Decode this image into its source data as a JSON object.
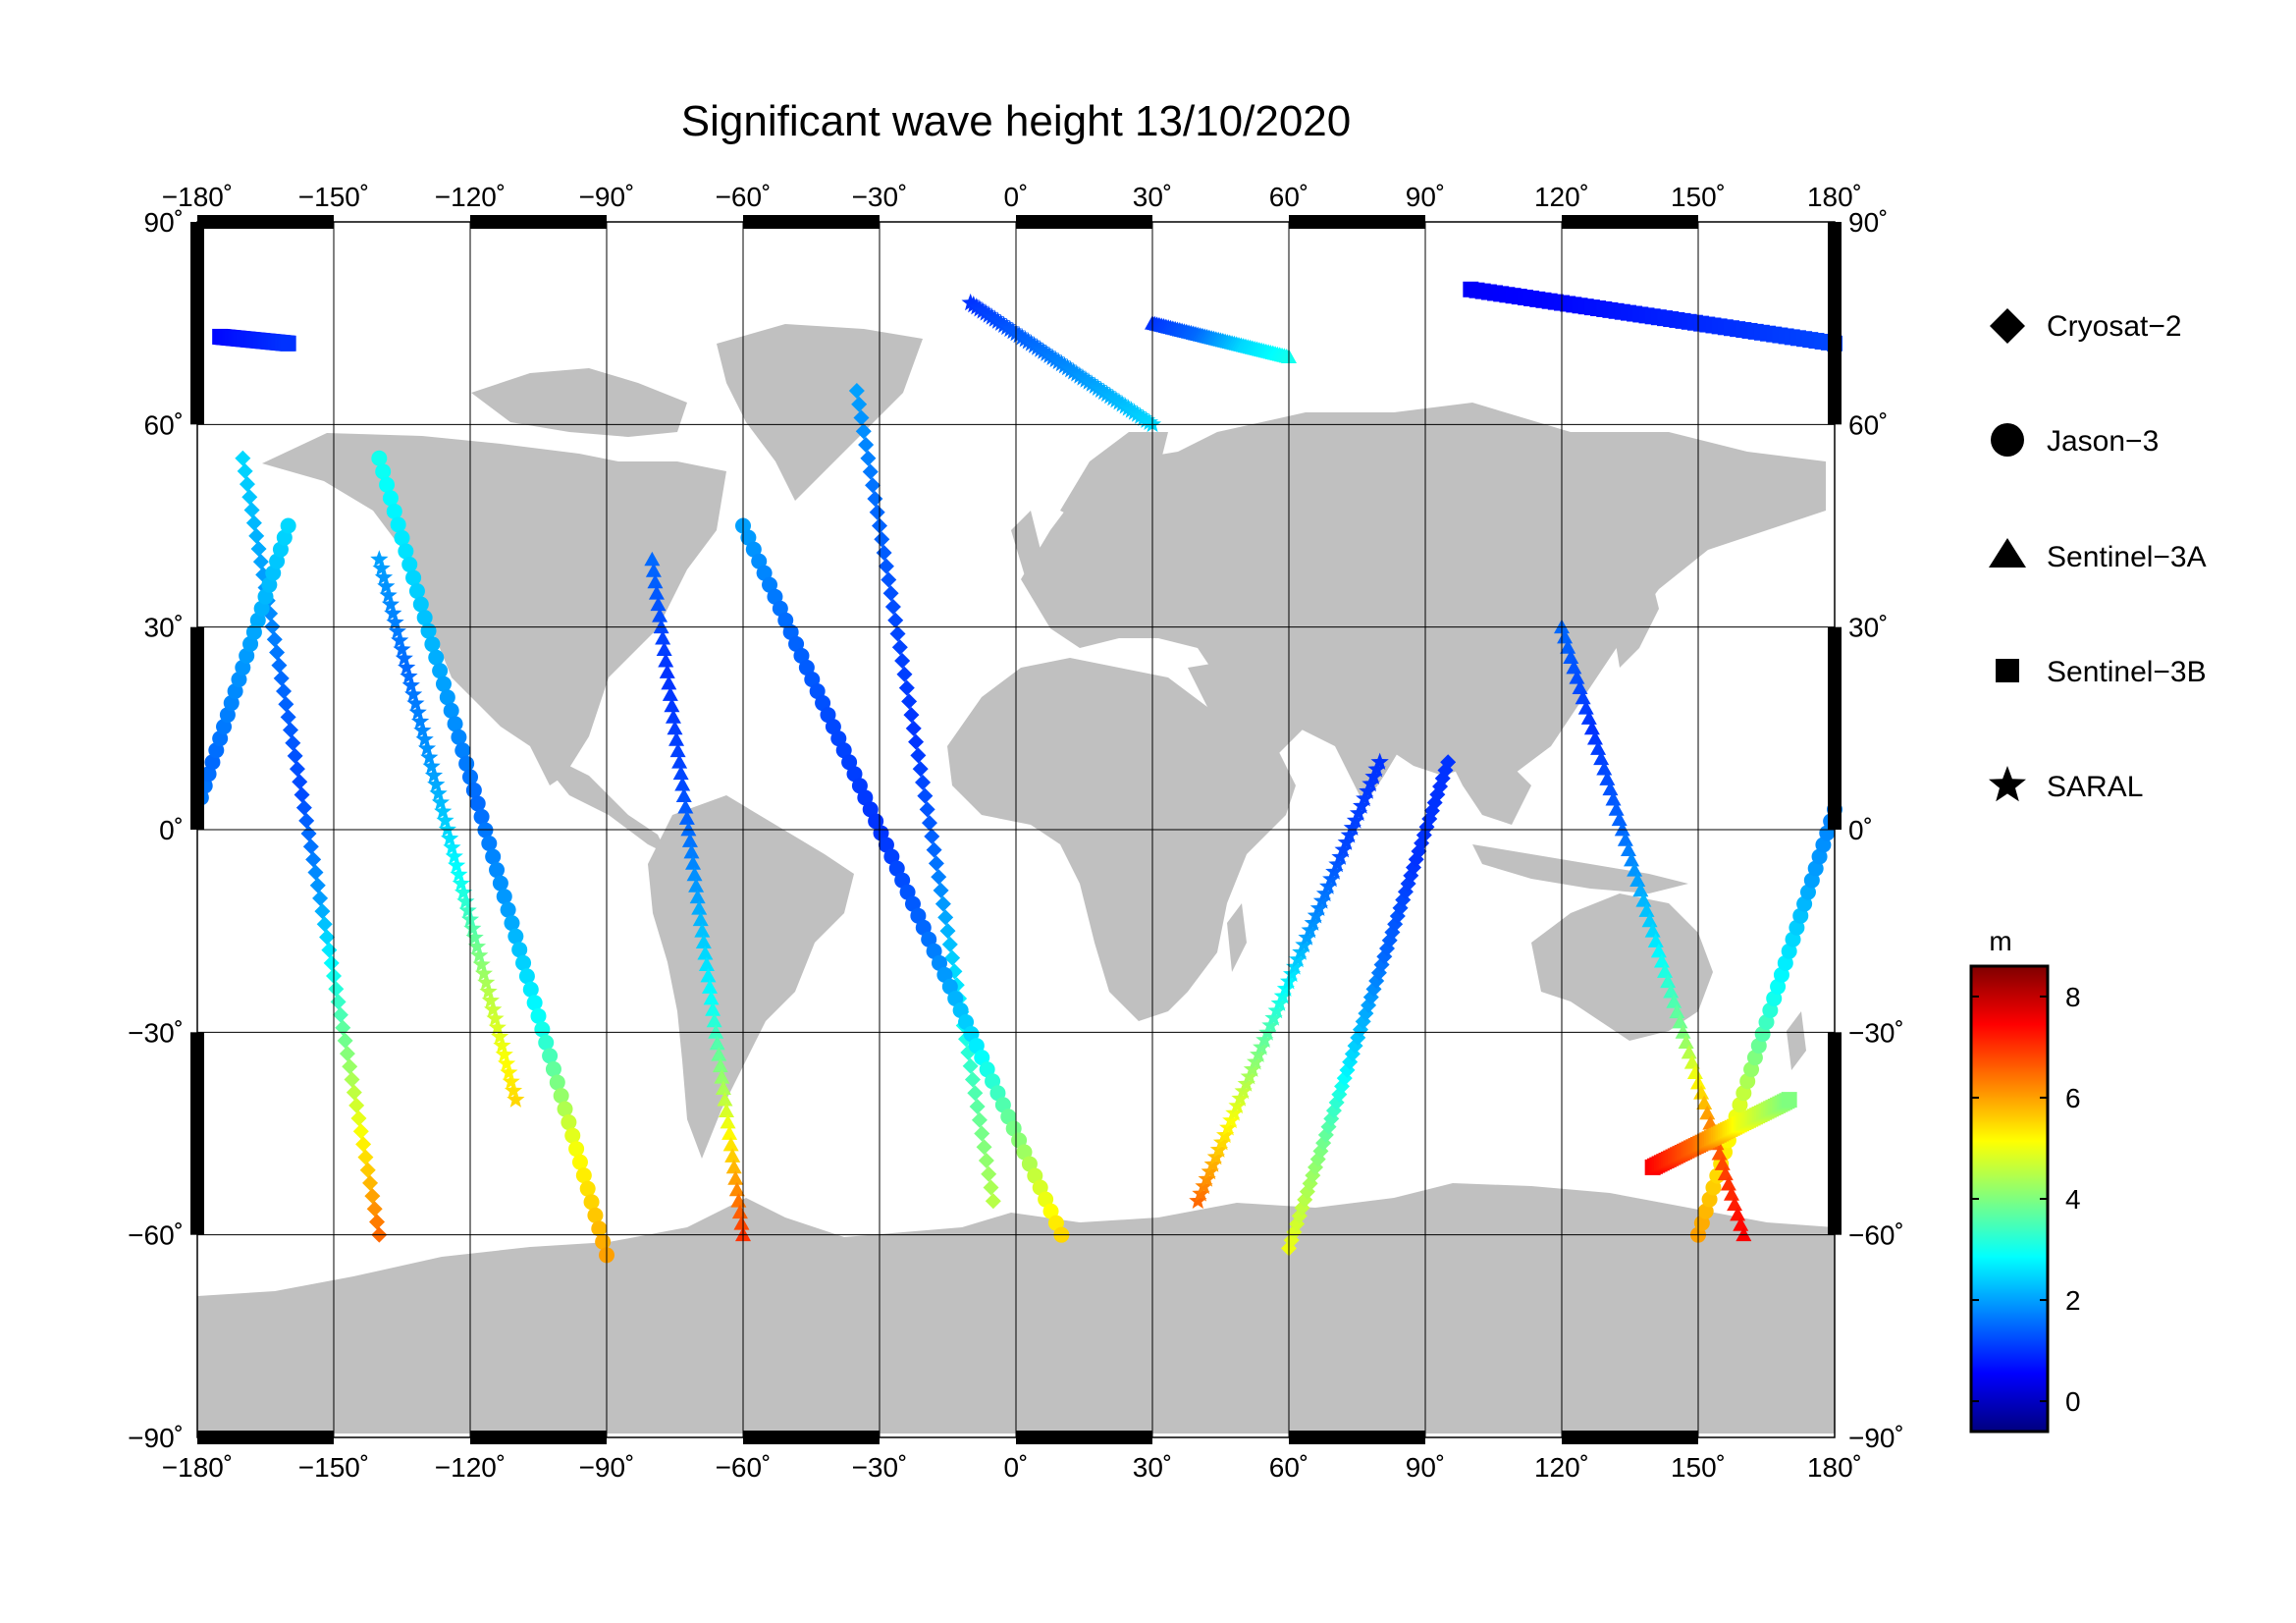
{
  "title": "Significant wave height 13/10/2020",
  "lon_ticks": [
    "−180˚",
    "−150˚",
    "−120˚",
    "−90˚",
    "−60˚",
    "−30˚",
    "0˚",
    "30˚",
    "60˚",
    "90˚",
    "120˚",
    "150˚",
    "180˚"
  ],
  "lat_ticks": [
    "90˚",
    "60˚",
    "30˚",
    "0˚",
    "−30˚",
    "−60˚",
    "−90˚"
  ],
  "legend": {
    "items": [
      {
        "label": "Cryosat−2",
        "marker": "diamond-icon"
      },
      {
        "label": "Jason−3",
        "marker": "circle-icon"
      },
      {
        "label": "Sentinel−3A",
        "marker": "triangle-icon"
      },
      {
        "label": "Sentinel−3B",
        "marker": "square-icon"
      },
      {
        "label": "SARAL",
        "marker": "star-icon"
      }
    ]
  },
  "colorbar": {
    "unit": "m",
    "ticks": [
      "8",
      "6",
      "4",
      "2",
      "0"
    ],
    "range": [
      -0.6,
      8.6
    ],
    "colormap": [
      "#00007f",
      "#0000ff",
      "#007fff",
      "#00ffff",
      "#7fff7f",
      "#ffff00",
      "#ff7f00",
      "#ff0000",
      "#7f0000"
    ]
  },
  "colors": {
    "land": "#c0c0c0",
    "ocean": "#ffffff",
    "grid": "#000000"
  },
  "chart_data": {
    "type": "scatter",
    "projection": "equirectangular",
    "xlim": [
      -180,
      180
    ],
    "ylim": [
      -90,
      90
    ],
    "grid": true,
    "legend_position": "right",
    "value_unit": "m",
    "series": [
      {
        "name": "Cryosat−2",
        "marker": "diamond",
        "tracks": [
          {
            "lon0": -35,
            "lat0": 65,
            "lon1": -5,
            "lat1": -55,
            "hs": [
              2.0,
              1.5,
              1.2,
              1.0,
              1.5,
              2.5,
              3.5,
              4.5
            ]
          },
          {
            "lon0": 60,
            "lat0": -62,
            "lon1": 95,
            "lat1": 10,
            "hs": [
              5.0,
              4.0,
              2.5,
              1.5,
              1.0,
              1.0
            ]
          },
          {
            "lon0": -170,
            "lat0": 55,
            "lon1": -140,
            "lat1": -60,
            "hs": [
              2.5,
              2.0,
              1.5,
              1.2,
              2.0,
              3.5,
              5.0,
              6.5
            ]
          }
        ]
      },
      {
        "name": "Jason−3",
        "marker": "circle",
        "tracks": [
          {
            "lon0": -60,
            "lat0": 45,
            "lon1": 10,
            "lat1": -60,
            "hs": [
              2.0,
              1.5,
              1.2,
              1.0,
              1.5,
              2.5,
              4.0,
              5.5
            ]
          },
          {
            "lon0": -140,
            "lat0": 55,
            "lon1": -90,
            "lat1": -63,
            "hs": [
              3.0,
              2.5,
              2.0,
              1.5,
              2.0,
              3.0,
              5.0,
              6.0
            ]
          },
          {
            "lon0": 150,
            "lat0": -60,
            "lon1": 200,
            "lat1": 45,
            "hs": [
              6.0,
              5.0,
              3.0,
              2.0,
              1.5,
              2.0,
              2.5
            ]
          }
        ]
      },
      {
        "name": "Sentinel−3A",
        "marker": "triangle",
        "tracks": [
          {
            "lon0": -80,
            "lat0": 40,
            "lon1": -60,
            "lat1": -60,
            "hs": [
              1.5,
              1.0,
              1.2,
              2.0,
              3.0,
              5.0,
              7.0
            ]
          },
          {
            "lon0": 120,
            "lat0": 30,
            "lon1": 160,
            "lat1": -60,
            "hs": [
              1.5,
              1.0,
              1.5,
              2.5,
              4.0,
              6.5,
              7.5
            ]
          },
          {
            "lon0": 30,
            "lat0": 75,
            "lon1": 60,
            "lat1": 70,
            "hs": [
              1.0,
              1.5,
              2.5,
              3.0
            ]
          }
        ]
      },
      {
        "name": "Sentinel−3B",
        "marker": "square",
        "tracks": [
          {
            "lon0": 100,
            "lat0": 80,
            "lon1": 180,
            "lat1": 72,
            "hs": [
              0.5,
              0.6,
              0.8,
              1.0,
              1.2
            ]
          },
          {
            "lon0": -175,
            "lat0": 73,
            "lon1": -160,
            "lat1": 72,
            "hs": [
              0.6,
              0.8,
              1.0
            ]
          },
          {
            "lon0": 140,
            "lat0": -50,
            "lon1": 170,
            "lat1": -40,
            "hs": [
              7.5,
              6.5,
              5.0,
              4.0
            ]
          }
        ]
      },
      {
        "name": "SARAL",
        "marker": "star",
        "tracks": [
          {
            "lon0": -10,
            "lat0": 78,
            "lon1": 30,
            "lat1": 60,
            "hs": [
              1.0,
              1.5,
              2.0,
              2.5
            ]
          },
          {
            "lon0": -110,
            "lat0": -40,
            "lon1": -140,
            "lat1": 40,
            "hs": [
              5.5,
              4.5,
              3.0,
              2.0,
              1.5,
              2.0
            ]
          },
          {
            "lon0": 40,
            "lat0": -55,
            "lon1": 80,
            "lat1": 10,
            "hs": [
              6.5,
              5.0,
              3.5,
              2.0,
              1.2,
              1.0
            ]
          }
        ]
      }
    ]
  }
}
